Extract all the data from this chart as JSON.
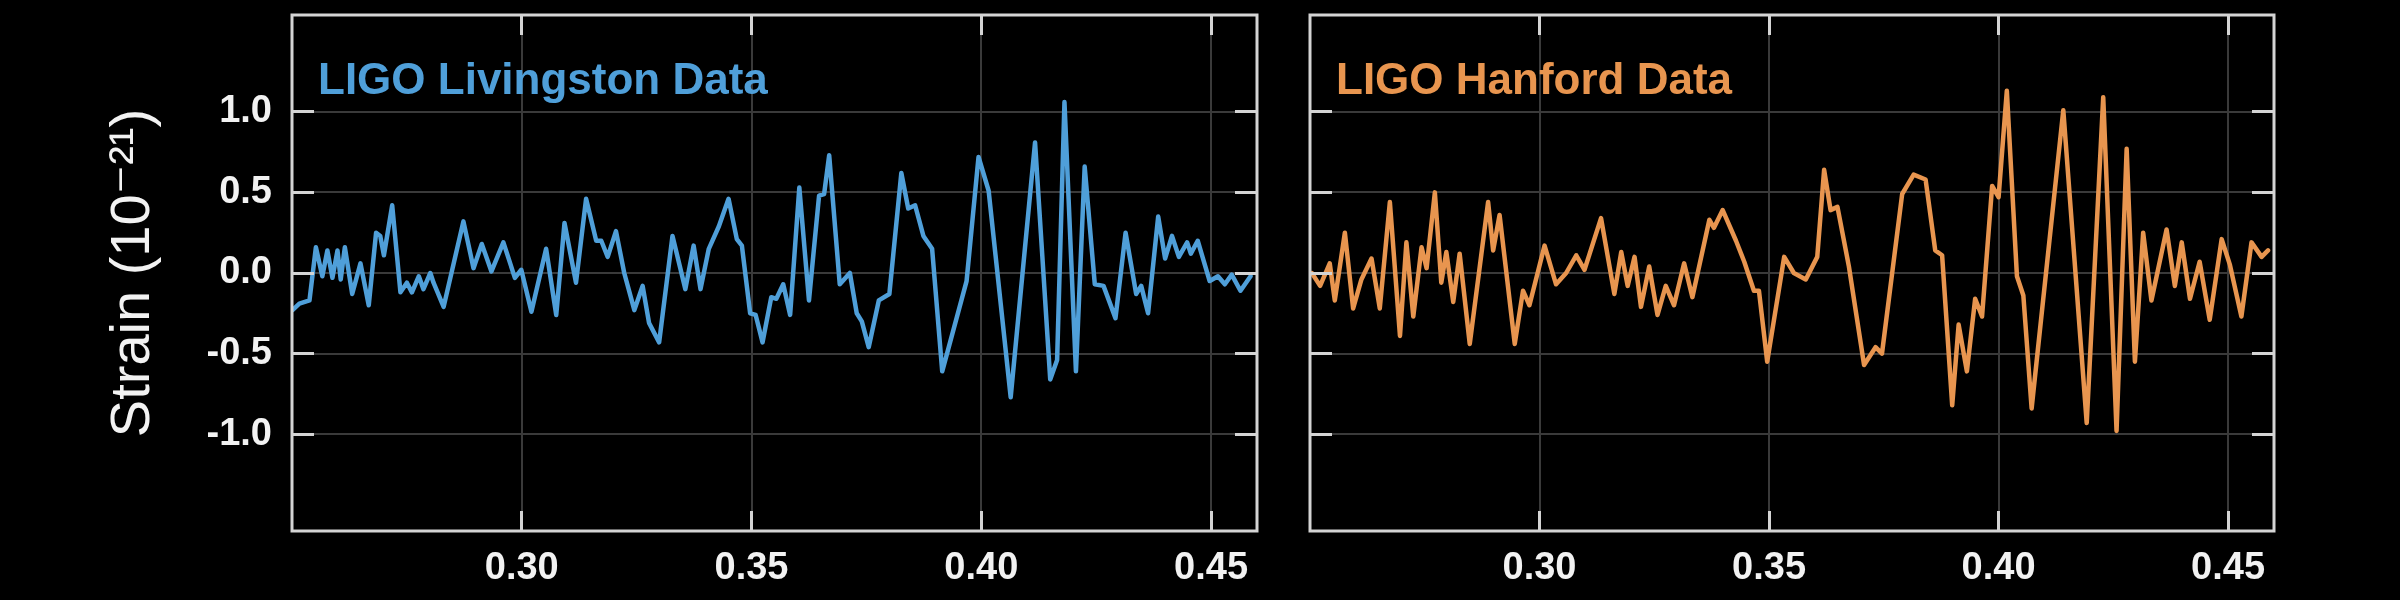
{
  "chart_data": [
    {
      "type": "line",
      "ylabel": "Strain (10⁻²¹)",
      "xlim": [
        0.25,
        0.46
      ],
      "ylim": [
        -1.6,
        1.6
      ],
      "xticks": [
        {
          "value": 0.3,
          "label": "0.30"
        },
        {
          "value": 0.35,
          "label": "0.35"
        },
        {
          "value": 0.4,
          "label": "0.40"
        },
        {
          "value": 0.45,
          "label": "0.45"
        }
      ],
      "yticks": [
        {
          "value": -1,
          "label": "-1.0"
        },
        -0.5,
        {
          "value": 0,
          "label": "0.0"
        },
        0.5,
        {
          "value": 1,
          "label": "1.0"
        }
      ],
      "grid": true,
      "x": [
        0.2501,
        0.2516,
        0.2538,
        0.2552,
        0.2566,
        0.2577,
        0.2588,
        0.2599,
        0.2606,
        0.2615,
        0.2631,
        0.2649,
        0.2667,
        0.2683,
        0.2692,
        0.27,
        0.2718,
        0.2736,
        0.275,
        0.2761,
        0.2776,
        0.2786,
        0.2801,
        0.2808,
        0.283,
        0.2873,
        0.2895,
        0.2913,
        0.2934,
        0.296,
        0.2985,
        0.2999,
        0.3021,
        0.3053,
        0.3075,
        0.3093,
        0.3118,
        0.314,
        0.3162,
        0.3173,
        0.3187,
        0.3205,
        0.3223,
        0.3245,
        0.3263,
        0.3277,
        0.3299,
        0.3328,
        0.3356,
        0.3374,
        0.3389,
        0.3407,
        0.3429,
        0.345,
        0.3468,
        0.3479,
        0.3497,
        0.3509,
        0.3524,
        0.3543,
        0.3554,
        0.3569,
        0.3584,
        0.3604,
        0.3625,
        0.3647,
        0.3658,
        0.3669,
        0.3692,
        0.3714,
        0.3729,
        0.374,
        0.3755,
        0.3777,
        0.38,
        0.3826,
        0.3841,
        0.3856,
        0.3874,
        0.3893,
        0.3915,
        0.3968,
        0.3994,
        0.4016,
        0.4064,
        0.4117,
        0.415,
        0.4165,
        0.4181,
        0.4206,
        0.4225,
        0.4247,
        0.4266,
        0.4292,
        0.4314,
        0.4337,
        0.4348,
        0.4363,
        0.4385,
        0.44,
        0.4415,
        0.443,
        0.4448,
        0.4456,
        0.4471,
        0.4497,
        0.4515,
        0.453,
        0.4545,
        0.4564,
        0.4586
      ],
      "series": [
        {
          "name": "LIGO Livingston Data",
          "color": "#4f9fd9",
          "values": [
            -0.23,
            -0.19,
            -0.17,
            0.16,
            -0.02,
            0.14,
            -0.03,
            0.14,
            -0.04,
            0.16,
            -0.13,
            0.06,
            -0.2,
            0.25,
            0.23,
            0.11,
            0.42,
            -0.12,
            -0.06,
            -0.12,
            -0.02,
            -0.1,
            0,
            -0.06,
            -0.21,
            0.32,
            0.03,
            0.18,
            0.01,
            0.19,
            -0.03,
            0.02,
            -0.24,
            0.15,
            -0.26,
            0.31,
            -0.06,
            0.46,
            0.2,
            0.2,
            0.1,
            0.26,
            0,
            -0.23,
            -0.08,
            -0.31,
            -0.43,
            0.23,
            -0.1,
            0.17,
            -0.1,
            0.15,
            0.29,
            0.46,
            0.21,
            0.17,
            -0.25,
            -0.26,
            -0.43,
            -0.15,
            -0.16,
            -0.07,
            -0.26,
            0.53,
            -0.17,
            0.48,
            0.49,
            0.73,
            -0.07,
            0,
            -0.25,
            -0.3,
            -0.46,
            -0.17,
            -0.13,
            0.62,
            0.4,
            0.42,
            0.23,
            0.15,
            -0.61,
            -0.05,
            0.72,
            0.51,
            -0.77,
            0.81,
            -0.66,
            -0.54,
            1.06,
            -0.61,
            0.66,
            -0.07,
            -0.08,
            -0.28,
            0.25,
            -0.13,
            -0.08,
            -0.25,
            0.35,
            0.09,
            0.23,
            0.1,
            0.19,
            0.12,
            0.2,
            -0.05,
            -0.02,
            -0.07,
            -0.01,
            -0.11,
            -0.02
          ]
        }
      ]
    },
    {
      "type": "line",
      "xlim": [
        0.25,
        0.46
      ],
      "ylim": [
        -1.6,
        1.6
      ],
      "xticks": [
        {
          "value": 0.3,
          "label": "0.30"
        },
        {
          "value": 0.35,
          "label": "0.35"
        },
        {
          "value": 0.4,
          "label": "0.40"
        },
        {
          "value": 0.45,
          "label": "0.45"
        }
      ],
      "yticks": [
        -1,
        -0.5,
        0,
        0.5,
        1
      ],
      "grid": true,
      "tick_labels": "x",
      "x": [
        0.2504,
        0.2522,
        0.2543,
        0.2554,
        0.2576,
        0.2594,
        0.2612,
        0.2634,
        0.2652,
        0.2674,
        0.2696,
        0.271,
        0.2725,
        0.2743,
        0.2754,
        0.2772,
        0.2786,
        0.2797,
        0.2812,
        0.2826,
        0.2848,
        0.2888,
        0.2899,
        0.2913,
        0.2946,
        0.2964,
        0.2978,
        0.3011,
        0.3036,
        0.3058,
        0.308,
        0.3098,
        0.3134,
        0.3163,
        0.3178,
        0.3192,
        0.3207,
        0.3221,
        0.3239,
        0.3257,
        0.3275,
        0.3293,
        0.3315,
        0.3333,
        0.337,
        0.338,
        0.3399,
        0.3428,
        0.3446,
        0.3467,
        0.3478,
        0.3496,
        0.3533,
        0.3554,
        0.358,
        0.3605,
        0.362,
        0.3634,
        0.3649,
        0.3674,
        0.3707,
        0.3732,
        0.3746,
        0.379,
        0.3815,
        0.3841,
        0.3862,
        0.3877,
        0.3899,
        0.3913,
        0.3931,
        0.3949,
        0.3964,
        0.3986,
        0.4,
        0.4018,
        0.404,
        0.4054,
        0.4072,
        0.4141,
        0.4192,
        0.4228,
        0.4257,
        0.4279,
        0.4297,
        0.4315,
        0.4333,
        0.4366,
        0.4384,
        0.4399,
        0.4417,
        0.4438,
        0.446,
        0.4486,
        0.4504,
        0.4529,
        0.4551,
        0.4573,
        0.4587
      ],
      "series": [
        {
          "name": "LIGO Hanford Data",
          "color": "#e8954f",
          "values": [
            0,
            -0.08,
            0.06,
            -0.17,
            0.25,
            -0.22,
            -0.04,
            0.09,
            -0.22,
            0.44,
            -0.39,
            0.19,
            -0.27,
            0.16,
            0.03,
            0.5,
            -0.06,
            0.13,
            -0.18,
            0.12,
            -0.44,
            0.44,
            0.14,
            0.36,
            -0.44,
            -0.11,
            -0.2,
            0.17,
            -0.07,
            0,
            0.11,
            0.02,
            0.34,
            -0.13,
            0.13,
            -0.08,
            0.1,
            -0.21,
            0.04,
            -0.26,
            -0.08,
            -0.2,
            0.06,
            -0.15,
            0.33,
            0.28,
            0.39,
            0.2,
            0.07,
            -0.11,
            -0.11,
            -0.55,
            0.1,
            0,
            -0.04,
            0.1,
            0.64,
            0.39,
            0.41,
            0.04,
            -0.57,
            -0.46,
            -0.5,
            0.49,
            0.61,
            0.58,
            0.14,
            0.11,
            -0.82,
            -0.32,
            -0.61,
            -0.16,
            -0.27,
            0.54,
            0.47,
            1.13,
            -0.02,
            -0.14,
            -0.84,
            1.01,
            -0.93,
            1.09,
            -0.98,
            0.77,
            -0.55,
            0.25,
            -0.17,
            0.27,
            -0.08,
            0.19,
            -0.16,
            0.07,
            -0.29,
            0.21,
            0.05,
            -0.27,
            0.19,
            0.1,
            0.14
          ]
        }
      ]
    }
  ]
}
